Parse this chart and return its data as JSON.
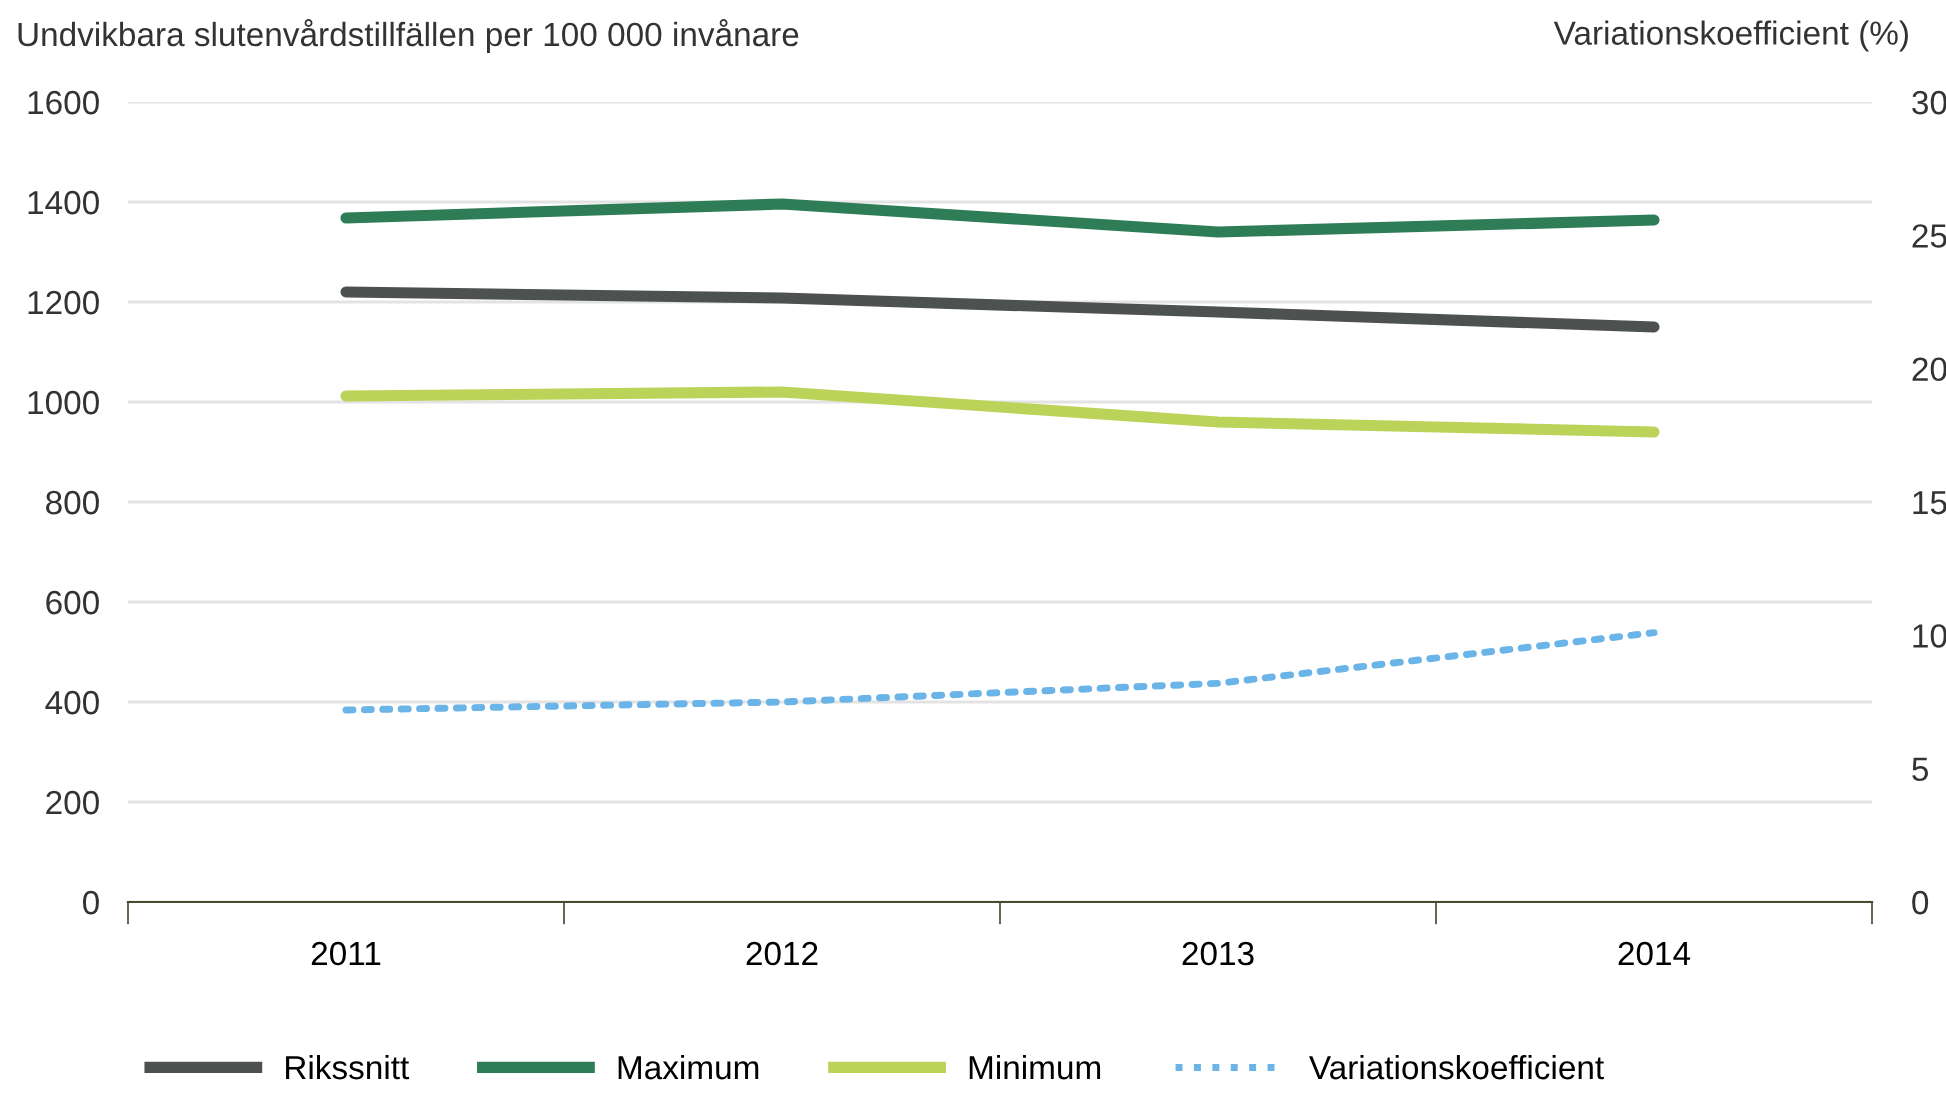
{
  "chart_data": {
    "type": "line",
    "ylabel": "Undvikbara slutenvårdstillfällen per 100 000 invånare",
    "y2label": "Variationskoefficient (%)",
    "categories": [
      "2011",
      "2012",
      "2013",
      "2014"
    ],
    "series": [
      {
        "name": "Rikssnitt",
        "color": "#4d5150",
        "values": [
          1220,
          1208,
          1180,
          1150
        ]
      },
      {
        "name": "Maximum",
        "color": "#2e7d57",
        "values": [
          1368,
          1396,
          1340,
          1364
        ]
      },
      {
        "name": "Minimum",
        "color": "#bcd35a",
        "values": [
          1012,
          1020,
          960,
          940
        ]
      },
      {
        "name": "Variationskoefficient",
        "color": "#6ab4e8",
        "values": [
          7.2,
          7.5,
          8.2,
          10.1
        ],
        "axis": "y2",
        "line_style": "dotted"
      }
    ],
    "ylim": [
      0,
      1600
    ],
    "yticks": [
      0,
      200,
      400,
      600,
      800,
      1000,
      1200,
      1400,
      1600
    ],
    "y2lim": [
      0,
      30
    ],
    "y2ticks": [
      0,
      5,
      10,
      15,
      20,
      25,
      30
    ],
    "grid": "y",
    "legend": "bottom",
    "marker": "none",
    "line_style": "solid"
  }
}
